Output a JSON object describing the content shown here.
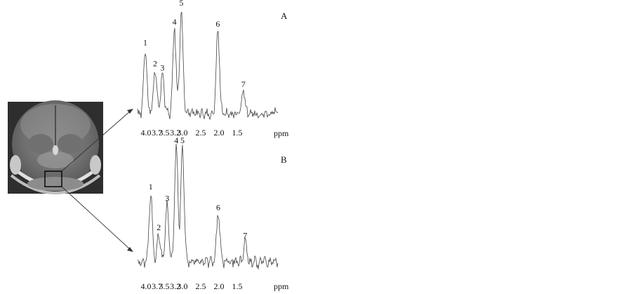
{
  "figure": {
    "panels": [
      {
        "id": "A",
        "label": "A",
        "peak_labels": [
          "1",
          "2",
          "3",
          "4",
          "5",
          "6",
          "7"
        ],
        "axis_ticks": [
          "4.0",
          "3.5",
          "3.0",
          "2.5",
          "2.0",
          "1.5"
        ],
        "axis_ticks_extra": [
          "3.7",
          "3.2"
        ],
        "axis_unit": "ppm"
      },
      {
        "id": "B",
        "label": "B",
        "peak_labels": [
          "1",
          "2",
          "3",
          "4",
          "5",
          "6",
          "7"
        ],
        "axis_ticks": [
          "4.0",
          "3.5",
          "3.0",
          "2.5",
          "2.0",
          "1.5"
        ],
        "axis_ticks_extra": [
          "3.7",
          "3.2"
        ],
        "axis_unit": "ppm"
      }
    ]
  },
  "chart_data": [
    {
      "type": "line",
      "panel": "A",
      "xlabel": "ppm",
      "x_direction": "reversed",
      "xlim": [
        4.1,
        0.85
      ],
      "peaks": [
        {
          "label": "1",
          "ppm": 4.02,
          "rel_height": 0.62
        },
        {
          "label": "2",
          "ppm": 3.75,
          "rel_height": 0.42
        },
        {
          "label": "3",
          "ppm": 3.55,
          "rel_height": 0.38
        },
        {
          "label": "4",
          "ppm": 3.22,
          "rel_height": 0.82
        },
        {
          "label": "5",
          "ppm": 3.03,
          "rel_height": 1.0
        },
        {
          "label": "6",
          "ppm": 2.03,
          "rel_height": 0.8
        },
        {
          "label": "7",
          "ppm": 1.33,
          "rel_height": 0.22
        }
      ]
    },
    {
      "type": "line",
      "panel": "B",
      "xlabel": "ppm",
      "x_direction": "reversed",
      "xlim": [
        4.1,
        0.85
      ],
      "peaks": [
        {
          "label": "1",
          "ppm": 3.87,
          "rel_height": 0.6
        },
        {
          "label": "2",
          "ppm": 3.65,
          "rel_height": 0.25
        },
        {
          "label": "3",
          "ppm": 3.42,
          "rel_height": 0.5
        },
        {
          "label": "4",
          "ppm": 3.17,
          "rel_height": 1.0
        },
        {
          "label": "5",
          "ppm": 3.0,
          "rel_height": 1.0
        },
        {
          "label": "6",
          "ppm": 2.02,
          "rel_height": 0.42
        },
        {
          "label": "7",
          "ppm": 1.28,
          "rel_height": 0.18
        }
      ]
    }
  ]
}
